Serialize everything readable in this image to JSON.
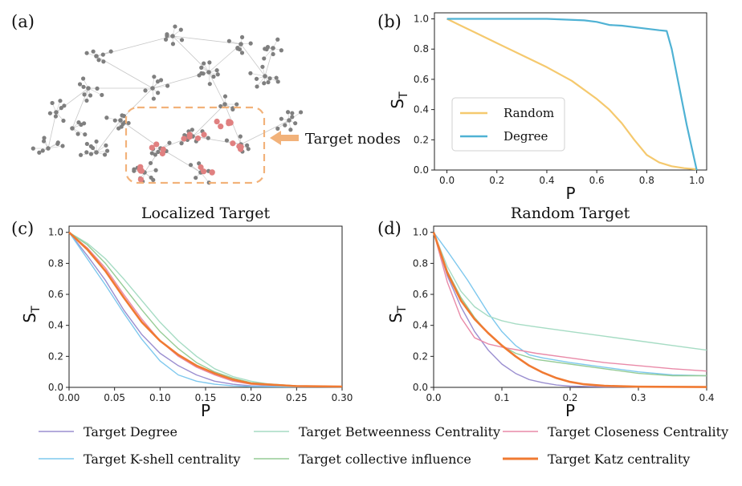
{
  "panel_labels": {
    "a": "(a)",
    "b": "(b)",
    "c": "(c)",
    "d": "(d)"
  },
  "network": {
    "annotation": "Target nodes",
    "colors": {
      "node": "#7f7f7f",
      "target": "#e08080",
      "box": "#f2b27a",
      "edge": "#c8c8c8"
    }
  },
  "chart_data": [
    {
      "id": "b",
      "type": "line",
      "title": "",
      "xlabel": "P",
      "ylabel": "S",
      "ylabel_sub": "T",
      "xlim": [
        -0.05,
        1.04
      ],
      "ylim": [
        0,
        1.04
      ],
      "xticks": [
        "0.0",
        "0.2",
        "0.4",
        "0.6",
        "0.8",
        "1.0"
      ],
      "xtick_values": [
        0,
        0.2,
        0.4,
        0.6,
        0.8,
        1.0
      ],
      "yticks": [
        "0.0",
        "0.2",
        "0.4",
        "0.6",
        "0.8",
        "1.0"
      ],
      "ytick_values": [
        0,
        0.2,
        0.4,
        0.6,
        0.8,
        1.0
      ],
      "legend_position": "center-left",
      "series": [
        {
          "name": "Random",
          "color": "#f5c96e",
          "x": [
            0,
            0.05,
            0.1,
            0.2,
            0.3,
            0.4,
            0.5,
            0.6,
            0.65,
            0.7,
            0.75,
            0.8,
            0.85,
            0.9,
            0.95,
            1.0
          ],
          "y": [
            1.0,
            0.96,
            0.92,
            0.84,
            0.76,
            0.68,
            0.59,
            0.47,
            0.4,
            0.31,
            0.2,
            0.1,
            0.05,
            0.025,
            0.012,
            0.005
          ]
        },
        {
          "name": "Degree",
          "color": "#4fb2d4",
          "x": [
            0,
            0.2,
            0.4,
            0.55,
            0.6,
            0.65,
            0.7,
            0.8,
            0.85,
            0.88,
            0.9,
            0.93,
            0.96,
            1.0
          ],
          "y": [
            1.0,
            1.0,
            1.0,
            0.99,
            0.98,
            0.96,
            0.955,
            0.935,
            0.925,
            0.92,
            0.8,
            0.55,
            0.3,
            0.0
          ]
        }
      ]
    },
    {
      "id": "c",
      "type": "line",
      "title": "Localized Target",
      "xlabel": "P",
      "ylabel": "S",
      "ylabel_sub": "T",
      "xlim": [
        0,
        0.3
      ],
      "ylim": [
        0,
        1.04
      ],
      "xticks": [
        "0.00",
        "0.05",
        "0.10",
        "0.15",
        "0.20",
        "0.25",
        "0.30"
      ],
      "xtick_values": [
        0,
        0.05,
        0.1,
        0.15,
        0.2,
        0.25,
        0.3
      ],
      "yticks": [
        "0.0",
        "0.2",
        "0.4",
        "0.6",
        "0.8",
        "1.0"
      ],
      "ytick_values": [
        0,
        0.2,
        0.4,
        0.6,
        0.8,
        1.0
      ],
      "series": [
        {
          "name": "Target Degree",
          "color": "#9b8fd0",
          "x": [
            0,
            0.02,
            0.04,
            0.06,
            0.08,
            0.1,
            0.12,
            0.14,
            0.16,
            0.18,
            0.2,
            0.25,
            0.3
          ],
          "y": [
            1.0,
            0.85,
            0.69,
            0.5,
            0.34,
            0.22,
            0.14,
            0.08,
            0.04,
            0.02,
            0.01,
            0.005,
            0.005
          ]
        },
        {
          "name": "Target K-shell centrality",
          "color": "#7ec8ee",
          "x": [
            0,
            0.02,
            0.04,
            0.06,
            0.08,
            0.1,
            0.12,
            0.14,
            0.16,
            0.18,
            0.2,
            0.25,
            0.3
          ],
          "y": [
            1.0,
            0.83,
            0.66,
            0.48,
            0.31,
            0.17,
            0.08,
            0.04,
            0.02,
            0.01,
            0.005,
            0.003,
            0.003
          ]
        },
        {
          "name": "Target Betweenness Centrality",
          "color": "#a6dcc4",
          "x": [
            0,
            0.02,
            0.04,
            0.06,
            0.08,
            0.1,
            0.12,
            0.14,
            0.16,
            0.18,
            0.2,
            0.22,
            0.25,
            0.3
          ],
          "y": [
            1.0,
            0.93,
            0.83,
            0.7,
            0.56,
            0.42,
            0.3,
            0.2,
            0.12,
            0.07,
            0.04,
            0.02,
            0.01,
            0.005
          ]
        },
        {
          "name": "Target collective influence",
          "color": "#96cc96",
          "x": [
            0,
            0.02,
            0.04,
            0.06,
            0.08,
            0.1,
            0.12,
            0.14,
            0.16,
            0.18,
            0.2,
            0.25,
            0.3
          ],
          "y": [
            1.0,
            0.92,
            0.8,
            0.65,
            0.5,
            0.36,
            0.25,
            0.16,
            0.1,
            0.06,
            0.03,
            0.01,
            0.005
          ]
        },
        {
          "name": "Target Closeness Centrality",
          "color": "#e98aa8",
          "x": [
            0,
            0.02,
            0.04,
            0.06,
            0.08,
            0.1,
            0.12,
            0.14,
            0.16,
            0.18,
            0.2,
            0.25,
            0.3
          ],
          "y": [
            1.0,
            0.9,
            0.77,
            0.6,
            0.44,
            0.3,
            0.2,
            0.13,
            0.08,
            0.04,
            0.02,
            0.008,
            0.005
          ]
        },
        {
          "name": "Target Katz centrality",
          "color": "#f07a32",
          "x": [
            0,
            0.02,
            0.04,
            0.06,
            0.08,
            0.1,
            0.12,
            0.14,
            0.16,
            0.18,
            0.2,
            0.25,
            0.3
          ],
          "y": [
            1.0,
            0.89,
            0.75,
            0.58,
            0.42,
            0.3,
            0.21,
            0.14,
            0.09,
            0.05,
            0.025,
            0.008,
            0.005
          ]
        }
      ]
    },
    {
      "id": "d",
      "type": "line",
      "title": "Random Target",
      "xlabel": "P",
      "ylabel": "S",
      "ylabel_sub": "T",
      "xlim": [
        0,
        0.4
      ],
      "ylim": [
        0,
        1.04
      ],
      "xticks": [
        "0.0",
        "0.1",
        "0.2",
        "0.3",
        "0.4"
      ],
      "xtick_values": [
        0,
        0.1,
        0.2,
        0.3,
        0.4
      ],
      "yticks": [
        "0.0",
        "0.2",
        "0.4",
        "0.6",
        "0.8",
        "1.0"
      ],
      "ytick_values": [
        0,
        0.2,
        0.4,
        0.6,
        0.8,
        1.0
      ],
      "series": [
        {
          "name": "Target Degree",
          "color": "#9b8fd0",
          "x": [
            0,
            0.02,
            0.04,
            0.06,
            0.08,
            0.1,
            0.12,
            0.14,
            0.16,
            0.18,
            0.2,
            0.25,
            0.3,
            0.4
          ],
          "y": [
            1.0,
            0.72,
            0.52,
            0.36,
            0.24,
            0.15,
            0.09,
            0.05,
            0.03,
            0.015,
            0.008,
            0.003,
            0.002,
            0.002
          ]
        },
        {
          "name": "Target K-shell centrality",
          "color": "#7ec8ee",
          "x": [
            0,
            0.02,
            0.05,
            0.08,
            0.1,
            0.12,
            0.14,
            0.16,
            0.2,
            0.25,
            0.3,
            0.35,
            0.4
          ],
          "y": [
            1.0,
            0.88,
            0.69,
            0.48,
            0.36,
            0.27,
            0.21,
            0.19,
            0.16,
            0.13,
            0.1,
            0.08,
            0.075
          ]
        },
        {
          "name": "Target Betweenness Centrality",
          "color": "#a6dcc4",
          "x": [
            0,
            0.02,
            0.04,
            0.06,
            0.08,
            0.1,
            0.12,
            0.15,
            0.2,
            0.25,
            0.3,
            0.35,
            0.4
          ],
          "y": [
            1.0,
            0.78,
            0.62,
            0.52,
            0.46,
            0.43,
            0.41,
            0.39,
            0.36,
            0.33,
            0.3,
            0.27,
            0.24
          ]
        },
        {
          "name": "Target collective influence",
          "color": "#96cc96",
          "x": [
            0,
            0.02,
            0.04,
            0.06,
            0.08,
            0.1,
            0.12,
            0.15,
            0.2,
            0.25,
            0.3,
            0.35,
            0.4
          ],
          "y": [
            1.0,
            0.75,
            0.58,
            0.45,
            0.35,
            0.27,
            0.22,
            0.18,
            0.15,
            0.12,
            0.09,
            0.075,
            0.075
          ]
        },
        {
          "name": "Target Closeness Centrality",
          "color": "#e98aa8",
          "x": [
            0,
            0.02,
            0.04,
            0.06,
            0.08,
            0.1,
            0.15,
            0.2,
            0.25,
            0.3,
            0.35,
            0.4
          ],
          "y": [
            1.0,
            0.68,
            0.45,
            0.32,
            0.28,
            0.26,
            0.22,
            0.19,
            0.16,
            0.14,
            0.12,
            0.105
          ]
        },
        {
          "name": "Target Katz centrality",
          "color": "#f07a32",
          "x": [
            0,
            0.02,
            0.04,
            0.06,
            0.08,
            0.1,
            0.12,
            0.14,
            0.16,
            0.18,
            0.2,
            0.22,
            0.25,
            0.3,
            0.4
          ],
          "y": [
            1.0,
            0.74,
            0.56,
            0.44,
            0.35,
            0.27,
            0.2,
            0.14,
            0.095,
            0.06,
            0.035,
            0.02,
            0.01,
            0.004,
            0.002
          ]
        }
      ]
    }
  ],
  "legend": {
    "items": [
      {
        "label": "Target Degree",
        "color": "#9b8fd0",
        "bold": false
      },
      {
        "label": "Target Betweenness Centrality",
        "color": "#a6dcc4",
        "bold": false
      },
      {
        "label": "Target Closeness Centrality",
        "color": "#e98aa8",
        "bold": false
      },
      {
        "label": "Target K-shell centrality",
        "color": "#7ec8ee",
        "bold": false
      },
      {
        "label": "Target collective influence",
        "color": "#96cc96",
        "bold": false
      },
      {
        "label": "Target Katz centrality",
        "color": "#f07a32",
        "bold": true
      }
    ]
  }
}
